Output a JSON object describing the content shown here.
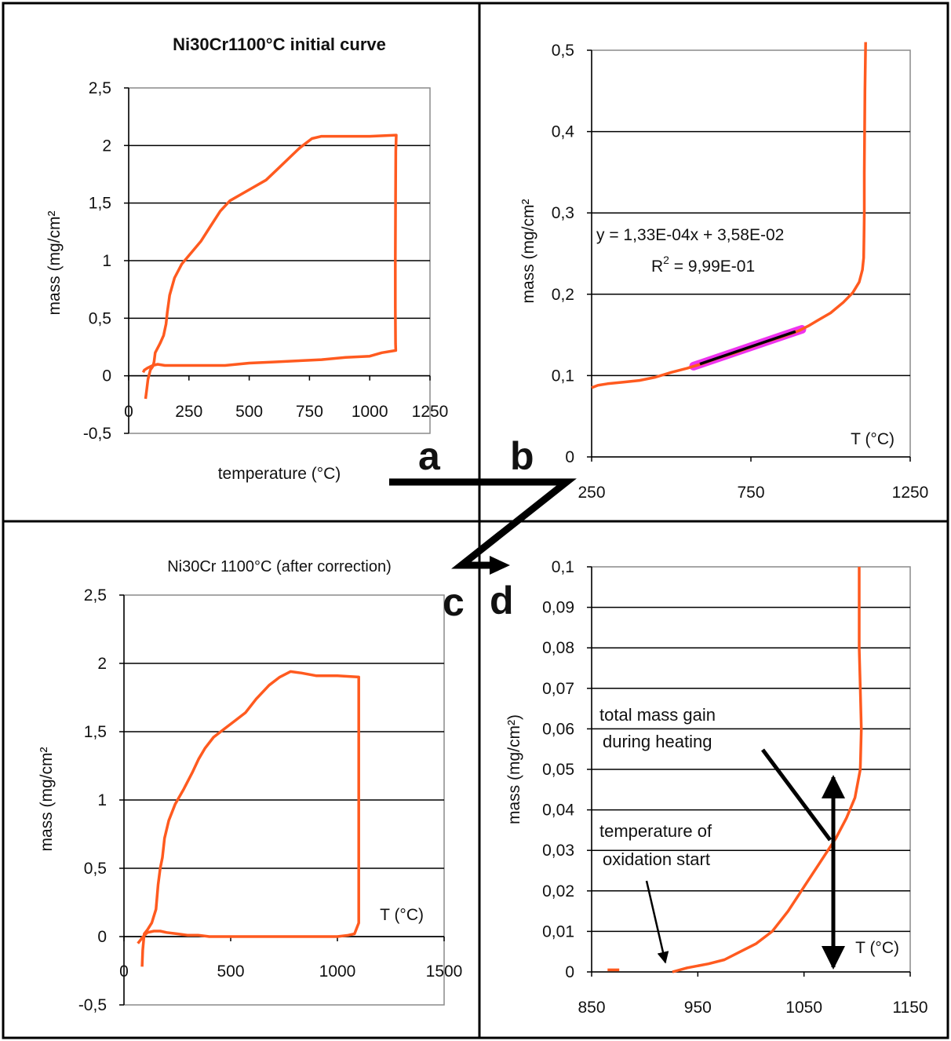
{
  "colors": {
    "curve": "#ff5a1f",
    "fit_highlight": "#ee33ee",
    "fit_line": "#000000",
    "grid": "#000000",
    "plot_border": "#8a8a8a",
    "background": "#ffffff"
  },
  "panel_letters": {
    "a": "a",
    "b": "b",
    "c": "c",
    "d": "d"
  },
  "chart_data": [
    {
      "id": "a",
      "type": "line",
      "title": "Ni30Cr1100°C initial curve",
      "xlabel": "temperature (°C)",
      "ylabel": "mass (mg/cm²",
      "xlim": [
        0,
        1250
      ],
      "ylim": [
        -0.5,
        2.5
      ],
      "xticks": [
        0,
        250,
        500,
        750,
        1000,
        1250
      ],
      "xtick_labels": [
        "0",
        "250",
        "500",
        "750",
        "1000",
        "1250"
      ],
      "yticks": [
        -0.5,
        0,
        0.5,
        1,
        1.5,
        2,
        2.5
      ],
      "ytick_labels": [
        "-0,5",
        "0",
        "0,5",
        "1",
        "1,5",
        "2",
        "2,5"
      ],
      "grid": "horizontal",
      "series": [
        {
          "points": [
            [
              70,
              -0.2
            ],
            [
              75,
              -0.12
            ],
            [
              80,
              -0.03
            ],
            [
              90,
              0.05
            ],
            [
              100,
              0.08
            ],
            [
              105,
              0.12
            ],
            [
              110,
              0.2
            ],
            [
              130,
              0.28
            ],
            [
              145,
              0.35
            ],
            [
              155,
              0.45
            ],
            [
              160,
              0.55
            ],
            [
              170,
              0.7
            ],
            [
              190,
              0.85
            ],
            [
              220,
              0.97
            ],
            [
              260,
              1.07
            ],
            [
              300,
              1.17
            ],
            [
              340,
              1.3
            ],
            [
              380,
              1.43
            ],
            [
              420,
              1.52
            ],
            [
              470,
              1.58
            ],
            [
              520,
              1.64
            ],
            [
              570,
              1.7
            ],
            [
              620,
              1.8
            ],
            [
              670,
              1.9
            ],
            [
              710,
              1.98
            ],
            [
              760,
              2.06
            ],
            [
              800,
              2.08
            ],
            [
              1000,
              2.08
            ],
            [
              1110,
              2.09
            ],
            [
              1108,
              1.95
            ],
            [
              1107,
              1.5
            ],
            [
              1106,
              1.0
            ],
            [
              1106,
              0.6
            ],
            [
              1107,
              0.28
            ],
            [
              1108,
              0.22
            ],
            [
              1050,
              0.2
            ],
            [
              1000,
              0.17
            ],
            [
              900,
              0.16
            ],
            [
              800,
              0.14
            ],
            [
              700,
              0.13
            ],
            [
              600,
              0.12
            ],
            [
              500,
              0.11
            ],
            [
              400,
              0.09
            ],
            [
              300,
              0.09
            ],
            [
              200,
              0.09
            ],
            [
              150,
              0.09
            ],
            [
              120,
              0.1
            ],
            [
              100,
              0.09
            ],
            [
              80,
              0.07
            ],
            [
              65,
              0.05
            ],
            [
              60,
              0.03
            ]
          ]
        }
      ]
    },
    {
      "id": "b",
      "type": "line",
      "xlabel": "T (°C)",
      "ylabel": "mass (mg/cm²",
      "xlim": [
        250,
        1250
      ],
      "ylim": [
        0,
        0.5
      ],
      "xticks": [
        250,
        750,
        1250
      ],
      "xtick_labels": [
        "250",
        "750",
        "1250"
      ],
      "yticks": [
        0,
        0.1,
        0.2,
        0.3,
        0.4,
        0.5
      ],
      "ytick_labels": [
        "0",
        "0,1",
        "0,2",
        "0,3",
        "0,4",
        "0,5"
      ],
      "grid": "horizontal",
      "equation": "y = 1,33E-04x + 3,58E-02",
      "r2_prefix": "R",
      "r2_sup": "2",
      "r2_value": " = 9,99E-01",
      "fit": {
        "slope": 0.000133,
        "intercept": 0.0358,
        "x_range": [
          570,
          910
        ]
      },
      "series": [
        {
          "points": [
            [
              250,
              0.085
            ],
            [
              270,
              0.088
            ],
            [
              300,
              0.09
            ],
            [
              350,
              0.092
            ],
            [
              400,
              0.094
            ],
            [
              450,
              0.098
            ],
            [
              500,
              0.104
            ],
            [
              550,
              0.109
            ],
            [
              600,
              0.115
            ],
            [
              650,
              0.122
            ],
            [
              700,
              0.128
            ],
            [
              750,
              0.135
            ],
            [
              800,
              0.142
            ],
            [
              850,
              0.148
            ],
            [
              900,
              0.155
            ],
            [
              930,
              0.161
            ],
            [
              960,
              0.168
            ],
            [
              1000,
              0.177
            ],
            [
              1040,
              0.19
            ],
            [
              1070,
              0.202
            ],
            [
              1090,
              0.215
            ],
            [
              1100,
              0.23
            ],
            [
              1104,
              0.245
            ],
            [
              1105,
              0.27
            ],
            [
              1106,
              0.3
            ],
            [
              1106,
              0.35
            ],
            [
              1107,
              0.4
            ],
            [
              1108,
              0.45
            ],
            [
              1110,
              0.51
            ]
          ]
        }
      ]
    },
    {
      "id": "c",
      "type": "line",
      "title": "Ni30Cr 1100°C (after correction)",
      "xlabel": "T (°C)",
      "ylabel": "mass (mg/cm²",
      "xlim": [
        0,
        1500
      ],
      "ylim": [
        -0.5,
        2.5
      ],
      "xticks": [
        0,
        500,
        1000,
        1500
      ],
      "xtick_labels": [
        "0",
        "500",
        "1000",
        "1500"
      ],
      "yticks": [
        -0.5,
        0,
        0.5,
        1,
        1.5,
        2,
        2.5
      ],
      "ytick_labels": [
        "-0,5",
        "0",
        "0,5",
        "1",
        "1,5",
        "2",
        "2,5"
      ],
      "grid": "horizontal",
      "series": [
        {
          "points": [
            [
              85,
              -0.22
            ],
            [
              88,
              -0.1
            ],
            [
              95,
              0.02
            ],
            [
              110,
              0.05
            ],
            [
              130,
              0.1
            ],
            [
              150,
              0.2
            ],
            [
              160,
              0.38
            ],
            [
              170,
              0.5
            ],
            [
              180,
              0.58
            ],
            [
              190,
              0.72
            ],
            [
              210,
              0.85
            ],
            [
              240,
              0.97
            ],
            [
              280,
              1.08
            ],
            [
              320,
              1.2
            ],
            [
              350,
              1.3
            ],
            [
              380,
              1.38
            ],
            [
              420,
              1.46
            ],
            [
              470,
              1.52
            ],
            [
              520,
              1.58
            ],
            [
              570,
              1.64
            ],
            [
              620,
              1.74
            ],
            [
              680,
              1.84
            ],
            [
              730,
              1.9
            ],
            [
              780,
              1.94
            ],
            [
              830,
              1.93
            ],
            [
              900,
              1.91
            ],
            [
              1000,
              1.91
            ],
            [
              1100,
              1.9
            ],
            [
              1100,
              1.5
            ],
            [
              1100,
              1.0
            ],
            [
              1100,
              0.5
            ],
            [
              1100,
              0.1
            ],
            [
              1080,
              0.02
            ],
            [
              1050,
              0.01
            ],
            [
              1000,
              0.0
            ],
            [
              900,
              0.0
            ],
            [
              800,
              0.0
            ],
            [
              700,
              0.0
            ],
            [
              600,
              0.0
            ],
            [
              500,
              0.0
            ],
            [
              400,
              0.0
            ],
            [
              350,
              0.01
            ],
            [
              300,
              0.01
            ],
            [
              250,
              0.02
            ],
            [
              200,
              0.03
            ],
            [
              170,
              0.04
            ],
            [
              140,
              0.04
            ],
            [
              110,
              0.03
            ],
            [
              90,
              0.0
            ],
            [
              75,
              -0.03
            ],
            [
              65,
              -0.05
            ]
          ]
        }
      ]
    },
    {
      "id": "d",
      "type": "line",
      "xlabel": "T (°C)",
      "ylabel": "mass (mg/cm²)",
      "xlim": [
        850,
        1150
      ],
      "ylim": [
        0,
        0.1
      ],
      "xticks": [
        850,
        950,
        1050,
        1150
      ],
      "xtick_labels": [
        "850",
        "950",
        "1050",
        "1150"
      ],
      "yticks": [
        0,
        0.01,
        0.02,
        0.03,
        0.04,
        0.05,
        0.06,
        0.07,
        0.08,
        0.09,
        0.1
      ],
      "ytick_labels": [
        "0",
        "0,01",
        "0,02",
        "0,03",
        "0,04",
        "0,05",
        "0,06",
        "0,07",
        "0,08",
        "0,09",
        "0,1"
      ],
      "grid": "horizontal",
      "annotations": {
        "mass_gain_line1": "total mass gain",
        "mass_gain_line2": "during heating",
        "temp_start_line1": "temperature of",
        "temp_start_line2": "oxidation start"
      },
      "segments": [
        [
          [
            865,
            0.0005
          ],
          [
            876,
            0.0005
          ]
        ],
        [
          [
            926,
            0.0
          ],
          [
            940,
            0.001
          ],
          [
            960,
            0.002
          ],
          [
            975,
            0.003
          ],
          [
            990,
            0.005
          ],
          [
            1005,
            0.007
          ],
          [
            1020,
            0.01
          ],
          [
            1035,
            0.015
          ],
          [
            1050,
            0.021
          ],
          [
            1065,
            0.027
          ],
          [
            1080,
            0.033
          ],
          [
            1090,
            0.038
          ],
          [
            1098,
            0.043
          ],
          [
            1103,
            0.05
          ],
          [
            1104,
            0.06
          ],
          [
            1103,
            0.07
          ],
          [
            1102,
            0.08
          ],
          [
            1102,
            0.09
          ],
          [
            1102,
            0.1
          ]
        ]
      ]
    }
  ]
}
